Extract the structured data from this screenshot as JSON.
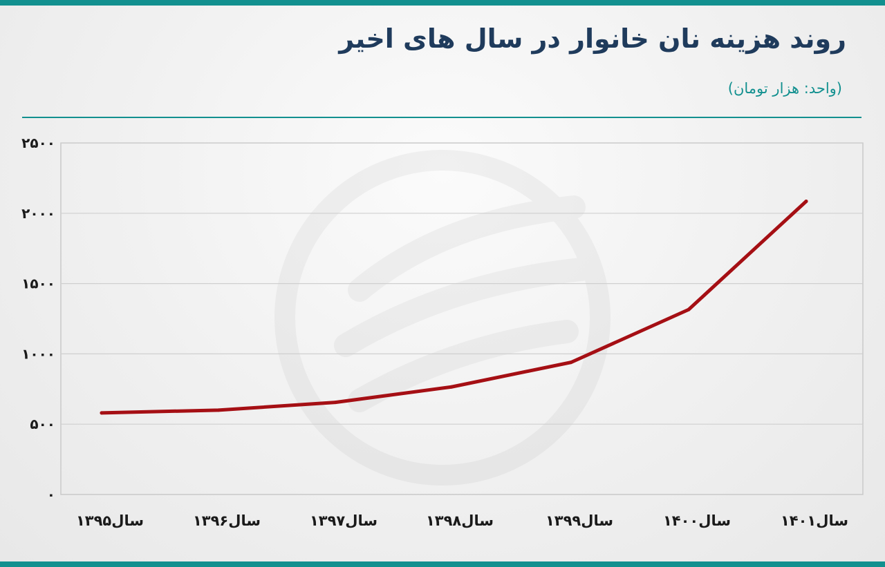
{
  "title": "روند هزینه نان خانوار در سال های اخیر",
  "subtitle": "(واحد: هزار تومان)",
  "colors": {
    "accent": "#12908f",
    "title": "#1f3b5c",
    "line": "#a50f14"
  },
  "chart_data": {
    "type": "line",
    "categories": [
      "سال۱۳۹۵",
      "سال۱۳۹۶",
      "سال۱۳۹۷",
      "سال۱۳۹۸",
      "سال۱۳۹۹",
      "سال۱۴۰۰",
      "سال۱۴۰۱"
    ],
    "series": [
      {
        "values": [
          580,
          600,
          655,
          765,
          940,
          1315,
          2085
        ]
      }
    ],
    "yticks": [
      "۰",
      "۵۰۰",
      "۱۰۰۰",
      "۱۵۰۰",
      "۲۰۰۰",
      "۲۵۰۰"
    ],
    "ylim": [
      0,
      2500
    ],
    "ytick_values": [
      0,
      500,
      1000,
      1500,
      2000,
      2500
    ],
    "grid": true,
    "title": "روند هزینه نان خانوار در سال های اخیر",
    "unit": "(واحد: هزار تومان)"
  }
}
